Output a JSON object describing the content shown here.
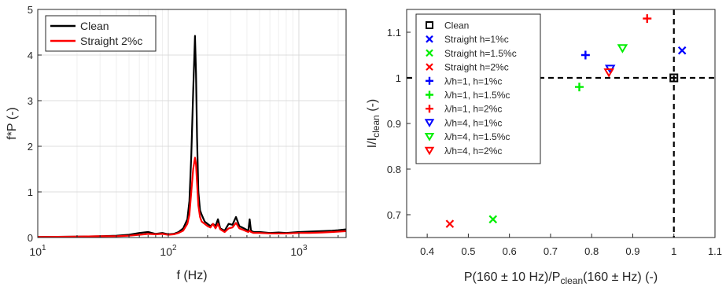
{
  "chart_data": [
    {
      "type": "line",
      "xscale": "log",
      "xlabel": "f (Hz)",
      "ylabel": "f*P (-)",
      "xlim": [
        10,
        2300
      ],
      "ylim": [
        0,
        5
      ],
      "xticks": [
        {
          "value": 10,
          "base": "10",
          "exp": "1"
        },
        {
          "value": 100,
          "base": "10",
          "exp": "2"
        },
        {
          "value": 1000,
          "base": "10",
          "exp": "3"
        }
      ],
      "yticks": [
        "0",
        "1",
        "2",
        "3",
        "4",
        "5"
      ],
      "grid": true,
      "legend": "top-left",
      "series": [
        {
          "name": "Clean",
          "color": "#000000",
          "x": [
            10,
            20,
            30,
            40,
            50,
            60,
            70,
            80,
            90,
            100,
            110,
            120,
            130,
            140,
            145,
            150,
            155,
            160,
            163,
            166,
            170,
            175,
            180,
            190,
            200,
            210,
            220,
            230,
            240,
            250,
            270,
            290,
            310,
            330,
            350,
            380,
            410,
            420,
            430,
            450,
            500,
            600,
            700,
            800,
            1000,
            1200,
            1500,
            1800,
            2000,
            2300
          ],
          "y": [
            0.01,
            0.02,
            0.03,
            0.04,
            0.06,
            0.1,
            0.12,
            0.08,
            0.1,
            0.07,
            0.08,
            0.12,
            0.2,
            0.4,
            0.8,
            1.8,
            3.2,
            4.42,
            3.6,
            2.2,
            1.0,
            0.6,
            0.5,
            0.35,
            0.3,
            0.25,
            0.3,
            0.25,
            0.4,
            0.2,
            0.15,
            0.3,
            0.28,
            0.45,
            0.25,
            0.2,
            0.15,
            0.4,
            0.15,
            0.12,
            0.12,
            0.1,
            0.11,
            0.1,
            0.12,
            0.13,
            0.14,
            0.15,
            0.16,
            0.18
          ]
        },
        {
          "name": "Straight 2%c",
          "color": "#ff0000",
          "x": [
            10,
            20,
            30,
            40,
            50,
            60,
            70,
            80,
            90,
            100,
            110,
            120,
            130,
            140,
            145,
            150,
            155,
            160,
            163,
            166,
            170,
            175,
            180,
            190,
            200,
            210,
            220,
            230,
            240,
            250,
            270,
            290,
            310,
            330,
            350,
            380,
            410,
            420,
            430,
            450,
            500,
            600,
            700,
            800,
            1000,
            1200,
            1500,
            1800,
            2000,
            2300
          ],
          "y": [
            0.01,
            0.02,
            0.03,
            0.03,
            0.04,
            0.06,
            0.08,
            0.07,
            0.08,
            0.06,
            0.07,
            0.1,
            0.15,
            0.3,
            0.5,
            1.0,
            1.5,
            1.75,
            1.6,
            1.2,
            0.7,
            0.45,
            0.35,
            0.3,
            0.25,
            0.22,
            0.3,
            0.2,
            0.3,
            0.18,
            0.12,
            0.2,
            0.22,
            0.32,
            0.2,
            0.16,
            0.12,
            0.15,
            0.12,
            0.1,
            0.1,
            0.09,
            0.09,
            0.09,
            0.1,
            0.1,
            0.11,
            0.12,
            0.13,
            0.14
          ]
        }
      ]
    },
    {
      "type": "scatter",
      "xlabel": "P(160 ± 10 Hz)/P_clean(160 ± Hz) (-)",
      "xlabel_parts": {
        "a": "P(160 ± 10 Hz)/P",
        "sub": "clean",
        "b": "(160 ± Hz) (-)"
      },
      "ylabel": "I/I_clean (-)",
      "ylabel_parts": {
        "a": "I/I",
        "sub": "clean",
        "b": " (-)"
      },
      "xlim": [
        0.35,
        1.1
      ],
      "ylim": [
        0.65,
        1.15
      ],
      "xticks": [
        "0.4",
        "0.5",
        "0.6",
        "0.7",
        "0.8",
        "0.9",
        "1",
        "1.1"
      ],
      "yticks": [
        "0.7",
        "0.8",
        "0.9",
        "1",
        "1.1"
      ],
      "grid": false,
      "legend": "top-left",
      "reference_lines": {
        "x": 1,
        "y": 1
      },
      "series": [
        {
          "name": "Clean",
          "marker": "square",
          "color": "#000000",
          "points": [
            [
              1.0,
              1.0
            ]
          ]
        },
        {
          "name": "Straight h=1%c",
          "marker": "x",
          "color": "#0000ff",
          "points": [
            [
              1.02,
              1.06
            ]
          ]
        },
        {
          "name": "Straight h=1.5%c",
          "marker": "x",
          "color": "#00ee00",
          "points": [
            [
              0.56,
              0.69
            ]
          ]
        },
        {
          "name": "Straight h=2%c",
          "marker": "x",
          "color": "#ff0000",
          "points": [
            [
              0.455,
              0.68
            ]
          ]
        },
        {
          "name": "λ/h=1, h=1%c",
          "marker": "plus",
          "color": "#0000ff",
          "points": [
            [
              0.785,
              1.05
            ]
          ]
        },
        {
          "name": "λ/h=1, h=1.5%c",
          "marker": "plus",
          "color": "#00ee00",
          "points": [
            [
              0.77,
              0.98
            ]
          ]
        },
        {
          "name": "λ/h=1, h=2%c",
          "marker": "plus",
          "color": "#ff0000",
          "points": [
            [
              0.935,
              1.13
            ]
          ]
        },
        {
          "name": "λ/h=4, h=1%c",
          "marker": "triangle-down",
          "color": "#0000ff",
          "points": [
            [
              0.845,
              1.02
            ]
          ]
        },
        {
          "name": "λ/h=4, h=1.5%c",
          "marker": "triangle-down",
          "color": "#00ee00",
          "points": [
            [
              0.875,
              1.065
            ]
          ]
        },
        {
          "name": "λ/h=4, h=2%c",
          "marker": "triangle-down",
          "color": "#ff0000",
          "points": [
            [
              0.842,
              1.012
            ]
          ]
        }
      ]
    }
  ]
}
